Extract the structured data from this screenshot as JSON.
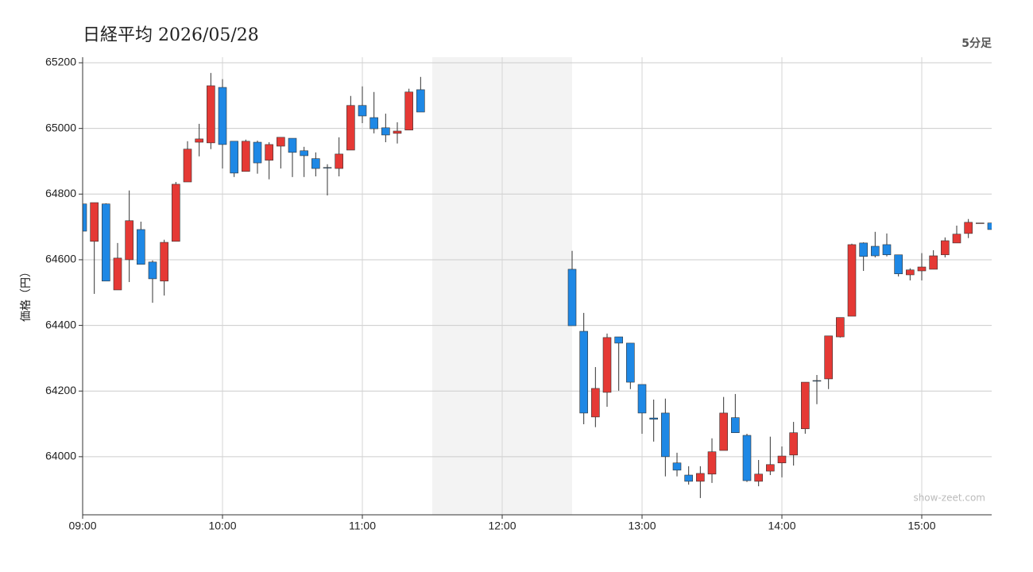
{
  "chart_data": {
    "type": "candlestick",
    "title": "日経平均 2026/05/28",
    "timeframe": "5分足",
    "y_label": "価格（円）",
    "watermark": "show-zeet.com",
    "up_color": "#e53935",
    "down_color": "#1e88e5",
    "break": [
      "11:30",
      "12:30"
    ],
    "xlim": [
      "09:00",
      "15:30"
    ],
    "xticks": [
      "09:00",
      "10:00",
      "11:00",
      "12:00",
      "13:00",
      "14:00",
      "15:00"
    ],
    "ylim": [
      63823,
      65217
    ],
    "yticks": [
      64000,
      64200,
      64400,
      64600,
      64800,
      65000,
      65200
    ],
    "grid": true,
    "x": [
      "09:00",
      "09:05",
      "09:10",
      "09:15",
      "09:20",
      "09:25",
      "09:30",
      "09:35",
      "09:40",
      "09:45",
      "09:50",
      "09:55",
      "10:00",
      "10:05",
      "10:10",
      "10:15",
      "10:20",
      "10:25",
      "10:30",
      "10:35",
      "10:40",
      "10:45",
      "10:50",
      "10:55",
      "11:00",
      "11:05",
      "11:10",
      "11:15",
      "11:20",
      "11:25",
      "12:30",
      "12:35",
      "12:40",
      "12:45",
      "12:50",
      "12:55",
      "13:00",
      "13:05",
      "13:10",
      "13:15",
      "13:20",
      "13:25",
      "13:30",
      "13:35",
      "13:40",
      "13:45",
      "13:50",
      "13:55",
      "14:00",
      "14:05",
      "14:10",
      "14:15",
      "14:20",
      "14:25",
      "14:30",
      "14:35",
      "14:40",
      "14:45",
      "14:50",
      "14:55",
      "15:00",
      "15:05",
      "15:10",
      "15:15",
      "15:20",
      "15:25",
      "15:30"
    ],
    "open": [
      64770,
      64656,
      64770,
      64508,
      64600,
      64692,
      64593,
      64535,
      64656,
      64837,
      64958,
      64956,
      65125,
      64961,
      64869,
      64958,
      64903,
      64946,
      64970,
      64932,
      64908,
      64881,
      64878,
      64934,
      65070,
      65033,
      65002,
      64985,
      64995,
      65118,
      64571,
      64382,
      64121,
      64196,
      64365,
      64346,
      64220,
      64118,
      64133,
      63981,
      63944,
      63925,
      63947,
      64019,
      64119,
      64065,
      63925,
      63956,
      63981,
      64005,
      64085,
      64232,
      64237,
      64365,
      64428,
      64651,
      64641,
      64646,
      64615,
      64554,
      64566,
      64571,
      64615,
      64651,
      64680,
      64712,
      64712
    ],
    "high": [
      64770,
      64774,
      64772,
      64651,
      64811,
      64716,
      64598,
      64661,
      64837,
      64961,
      65014,
      65169,
      65150,
      64961,
      64966,
      64963,
      64958,
      64973,
      64970,
      64944,
      64927,
      64891,
      64973,
      65099,
      65128,
      65111,
      65045,
      65019,
      65121,
      65157,
      64627,
      64438,
      64273,
      64375,
      64365,
      64346,
      64220,
      64174,
      64177,
      64012,
      63971,
      63971,
      64056,
      64182,
      64191,
      64070,
      63990,
      64061,
      64031,
      64106,
      64227,
      64249,
      64368,
      64424,
      64649,
      64653,
      64685,
      64680,
      64615,
      64574,
      64620,
      64629,
      64668,
      64704,
      64724,
      64712,
      64712
    ],
    "low": [
      64687,
      64496,
      64535,
      64508,
      64532,
      64586,
      64469,
      64491,
      64656,
      64837,
      64915,
      64937,
      64878,
      64852,
      64869,
      64862,
      64845,
      64878,
      64852,
      64852,
      64854,
      64796,
      64854,
      64934,
      65016,
      64985,
      64958,
      64954,
      64995,
      65050,
      64399,
      64099,
      64090,
      64152,
      64201,
      64206,
      64070,
      64046,
      63940,
      63940,
      63915,
      63874,
      63920,
      64019,
      64073,
      63923,
      63910,
      63944,
      63937,
      63973,
      64070,
      64160,
      64206,
      64363,
      64428,
      64566,
      64607,
      64610,
      64549,
      64537,
      64537,
      64571,
      64607,
      64651,
      64666,
      64712,
      64692
    ],
    "close": [
      64687,
      64774,
      64535,
      64605,
      64719,
      64586,
      64542,
      64653,
      64830,
      64937,
      64968,
      65130,
      64951,
      64864,
      64961,
      64895,
      64951,
      64973,
      64927,
      64917,
      64878,
      64880,
      64922,
      65070,
      65038,
      64999,
      64980,
      64992,
      65111,
      65050,
      64399,
      64133,
      64208,
      64363,
      64346,
      64227,
      64133,
      64114,
      64000,
      63959,
      63925,
      63949,
      64015,
      64133,
      64073,
      63927,
      63947,
      63976,
      64002,
      64073,
      64227,
      64230,
      64368,
      64424,
      64646,
      64610,
      64612,
      64615,
      64557,
      64569,
      64578,
      64612,
      64658,
      64678,
      64714,
      64712,
      64692
    ]
  }
}
